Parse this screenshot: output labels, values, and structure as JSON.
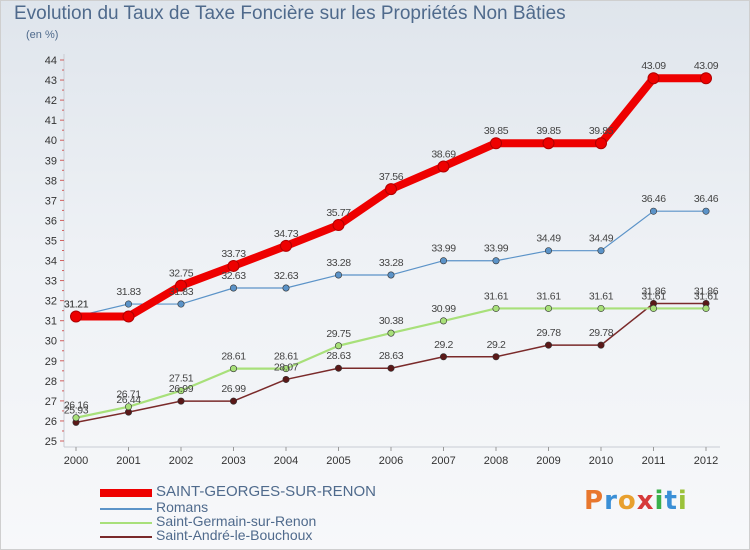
{
  "header": {
    "title": "Evolution du Taux de Taxe Foncière sur les Propriétés Non Bâties",
    "unit": "(en %)"
  },
  "logo": {
    "text": "Proxiti",
    "colors": [
      "#e8772e",
      "#3a8fd6",
      "#e8a02e",
      "#d63a3a",
      "#3ab04a",
      "#3a8fd6",
      "#9bc23a"
    ]
  },
  "chart_data": {
    "type": "line",
    "x": [
      "2000",
      "2001",
      "2002",
      "2003",
      "2004",
      "2005",
      "2006",
      "2007",
      "2008",
      "2009",
      "2010",
      "2011",
      "2012"
    ],
    "ylim": [
      25,
      44
    ],
    "yticks": [
      25,
      26,
      27,
      28,
      29,
      30,
      31,
      32,
      33,
      34,
      35,
      36,
      37,
      38,
      39,
      40,
      41,
      42,
      43,
      44
    ],
    "grid": false,
    "legend_position": "bottom",
    "series": [
      {
        "name": "SAINT-GEORGES-SUR-RENON",
        "color": "#ee0000",
        "width": 8,
        "values": [
          31.21,
          31.21,
          32.75,
          33.73,
          34.73,
          35.77,
          37.56,
          38.69,
          39.85,
          39.85,
          39.85,
          43.09,
          43.09
        ],
        "labels": [
          "31.21",
          "",
          "32.75",
          "33.73",
          "34.73",
          "35.77",
          "37.56",
          "38.69",
          "39.85",
          "39.85",
          "39.85",
          "43.09",
          "43.09"
        ]
      },
      {
        "name": "Romans",
        "color": "#5b93c8",
        "width": 1.2,
        "values": [
          31.21,
          31.83,
          31.83,
          32.63,
          32.63,
          33.28,
          33.28,
          33.99,
          33.99,
          34.49,
          34.49,
          36.46,
          36.46
        ],
        "labels": [
          "31.21",
          "31.83",
          "31.83",
          "32.63",
          "32.63",
          "33.28",
          "33.28",
          "33.99",
          "33.99",
          "34.49",
          "34.49",
          "36.46",
          "36.46"
        ]
      },
      {
        "name": "Saint-Germain-sur-Renon",
        "color": "#a8e07a",
        "width": 2.2,
        "values": [
          26.16,
          26.71,
          27.51,
          28.61,
          28.61,
          29.75,
          30.38,
          30.99,
          31.61,
          31.61,
          31.61,
          31.61,
          31.61
        ],
        "labels": [
          "26.16",
          "26.71",
          "27.51",
          "28.61",
          "28.61",
          "29.75",
          "30.38",
          "30.99",
          "31.61",
          "31.61",
          "31.61",
          "31.61",
          "31.61"
        ]
      },
      {
        "name": "Saint-André-le-Bouchoux",
        "color": "#7a2a2a",
        "width": 1.5,
        "values": [
          25.93,
          26.44,
          26.99,
          26.99,
          28.07,
          28.63,
          28.63,
          29.2,
          29.2,
          29.78,
          29.78,
          31.86,
          31.86
        ],
        "labels": [
          "25.93",
          "26.44",
          "26.99",
          "26.99",
          "28.07",
          "28.63",
          "28.63",
          "29.2",
          "29.2",
          "29.78",
          "29.78",
          "31.86",
          "31.86"
        ]
      }
    ]
  }
}
